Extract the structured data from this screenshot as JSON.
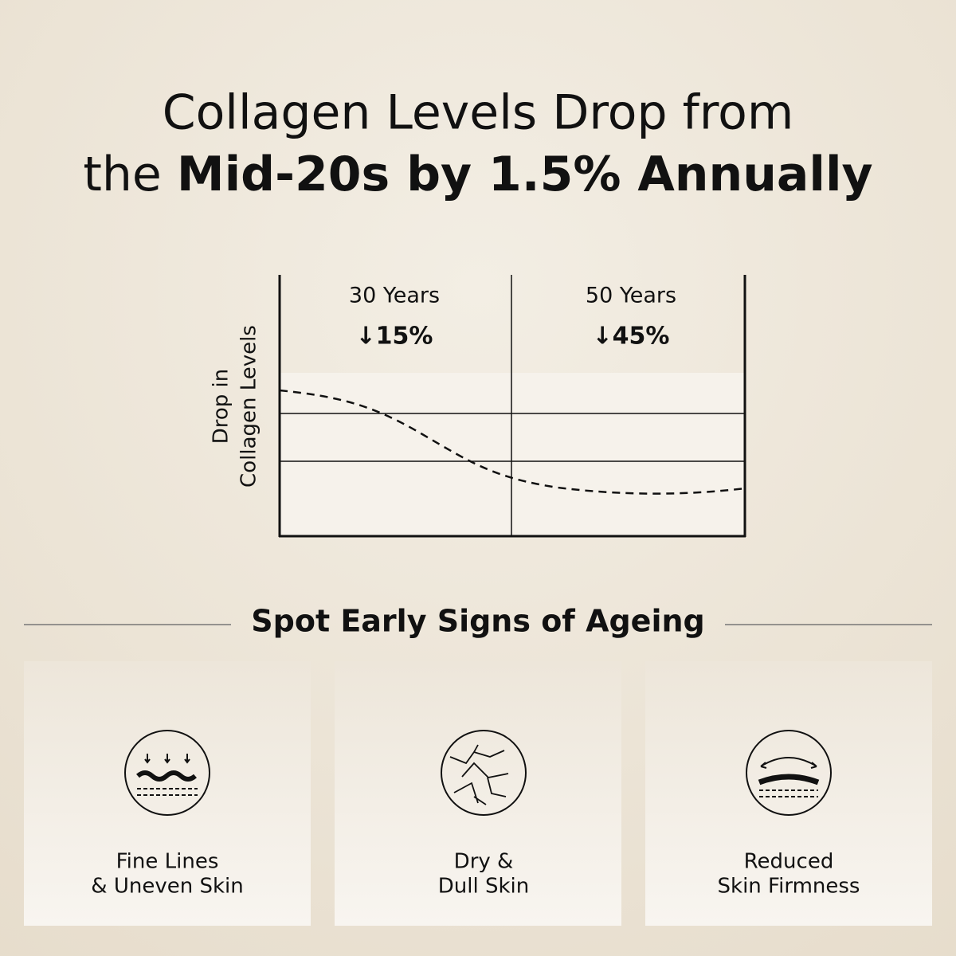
{
  "title": {
    "line1": "Collagen Levels Drop from",
    "line2_prefix": "the",
    "line2_bold": "Mid-20s by 1.5% Annually"
  },
  "chart": {
    "y_axis_label": [
      "Drop in",
      "Collagen Levels"
    ],
    "panels": [
      {
        "label": "30 Years",
        "drop": "↓15%"
      },
      {
        "label": "50 Years",
        "drop": "↓45%"
      }
    ]
  },
  "section_title": "Spot Early Signs of Ageing",
  "cards": [
    {
      "label": [
        "Fine Lines",
        "& Uneven Skin"
      ]
    },
    {
      "label": [
        "Dry &",
        "Dull Skin"
      ]
    },
    {
      "label": [
        "Reduced",
        "Skin Firmness"
      ]
    }
  ]
}
